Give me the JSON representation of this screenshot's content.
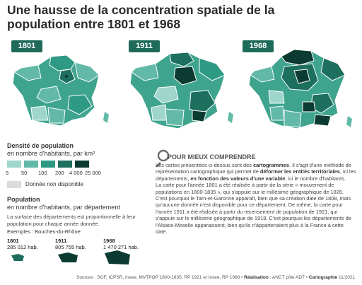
{
  "title": "Une hausse de la concentration spatiale de la population entre 1801 et 1968",
  "maps": [
    {
      "year": "1801"
    },
    {
      "year": "1911"
    },
    {
      "year": "1968"
    }
  ],
  "density_legend": {
    "title": "Densité de population",
    "subtitle": "en nombre d'habitants, par km²",
    "colors": [
      "#9fd6cc",
      "#62b9a7",
      "#2f9a84",
      "#1d6f5e",
      "#0c3b31"
    ],
    "breaks": [
      "5",
      "50",
      "100",
      "200",
      "4 000",
      "25 000"
    ],
    "no_data_color": "#dcdcdc",
    "no_data_label": "Donnée non disponible"
  },
  "population_legend": {
    "title": "Population",
    "subtitle": "en nombre d'habitants, par département",
    "description": "La surface des départements est proportionnelle à leur population pour chaque année donnée.",
    "examples_label": "Exemples : Bouches-du-Rhône",
    "examples": [
      {
        "year": "1801",
        "value": "285 012 hab."
      },
      {
        "year": "1911",
        "value": "805 755 hab."
      },
      {
        "year": "1968",
        "value": "1 470 271 hab."
      }
    ]
  },
  "explainer": {
    "heading": "POUR MIEUX COMPRENDRE",
    "p1_a": "Les cartes présentées ci-dessus sont des ",
    "p1_b": "cartogrammes",
    "p1_c": ". Il s'agit d'une méthode de représentation cartographique qui permet de ",
    "p1_d": "déformer les entités territoriales",
    "p1_e": ", ici les départements, ",
    "p1_f": "en fonction des valeurs d'une variable",
    "p1_g": ", ici le nombre d'habitants.",
    "p2": "La carte pour l'année 1801 a été réalisée à partir de la série « mouvement de populations en 1800-1835 », qui s'appuie sur le millésime géographique de 1826. C'est pourquoi le Tarn-et-Garonne apparaît, bien que sa création date de 1808, mais qu'aucune donnée n'est disponible pour ce département. De même, la carte pour l'année 1911 a été réalisée à partir du recensement de population de 1921, qui s'appuie sur le millésime géographique de 1918. C'est pourquoi les départements de l'Alsace-Moselle apparaissent, bien qu'ils n'appartenaient plus à la France à cette date."
  },
  "sources": {
    "text": "Sources : SGF, ICPSR, Insee, MVTPOP 1800-1835, RP 1921 et Insee, RP 1968 • ",
    "realisation_label": "Réalisation",
    "realisation_value": " : ANCT pôle ADT • ",
    "carto_label": "Cartographie",
    "carto_value": " 11/2021"
  }
}
